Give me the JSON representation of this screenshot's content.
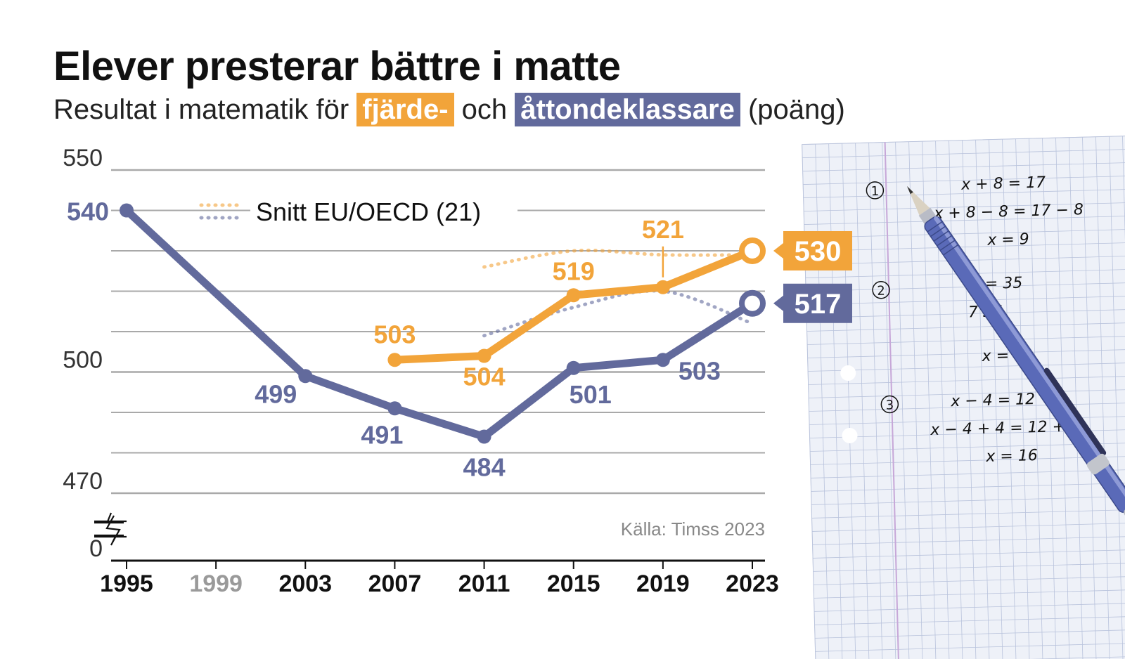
{
  "title": "Elever presterar bättre i matte",
  "subtitle": {
    "prefix": "Resultat i matematik för",
    "grade4": "fjärde-",
    "middle": "och",
    "grade8": "åttondeklassare",
    "suffix": "(poäng)"
  },
  "legend_label": "Snitt EU/OECD (21)",
  "source": "Källa: Timss 2023",
  "colors": {
    "grade4": "#f2a43a",
    "grade8": "#626a9c",
    "grid": "#a9a9a9",
    "grey_year": "#9a9a9a"
  },
  "paper": {
    "equations": [
      "x + 8 = 17",
      "x + 8 − 8 = 17 − 8",
      "x = 9",
      "= 35",
      "7 35",
      "x =",
      "x − 4 = 12",
      "x − 4 + 4 = 12 + 4",
      "x = 16"
    ],
    "numbers": [
      "1",
      "2",
      "3"
    ]
  },
  "chart_data": {
    "type": "line",
    "x": [
      1995,
      1999,
      2003,
      2007,
      2011,
      2015,
      2019,
      2023
    ],
    "x_tick_labels": [
      "1995",
      "1999",
      "2003",
      "2007",
      "2011",
      "2015",
      "2019",
      "2023"
    ],
    "y_tick_labels": [
      "550",
      "500",
      "470",
      "0"
    ],
    "ylim": [
      470,
      550
    ],
    "y_axis_break": "0",
    "grid": true,
    "series": [
      {
        "name": "åttondeklassare",
        "color": "#626a9c",
        "points": [
          [
            1995,
            540
          ],
          [
            2003,
            499
          ],
          [
            2007,
            491
          ],
          [
            2011,
            484
          ],
          [
            2015,
            501
          ],
          [
            2019,
            503
          ],
          [
            2023,
            517
          ]
        ],
        "labels": [
          "540",
          "499",
          "491",
          "484",
          "501",
          "503",
          "517"
        ]
      },
      {
        "name": "fjärde-",
        "color": "#f2a43a",
        "points": [
          [
            2007,
            503
          ],
          [
            2011,
            504
          ],
          [
            2015,
            519
          ],
          [
            2019,
            521
          ],
          [
            2023,
            530
          ]
        ],
        "labels": [
          "503",
          "504",
          "519",
          "521",
          "530"
        ]
      },
      {
        "name": "Snitt EU/OECD (21) fjärde-",
        "color": "#f2a43a",
        "dotted": true,
        "points": [
          [
            2011,
            526
          ],
          [
            2015,
            530
          ],
          [
            2019,
            529
          ],
          [
            2023,
            529
          ]
        ]
      },
      {
        "name": "Snitt EU/OECD (21) åttondeklassare",
        "color": "#626a9c",
        "dotted": true,
        "points": [
          [
            2011,
            509
          ],
          [
            2015,
            516
          ],
          [
            2019,
            520
          ],
          [
            2023,
            512
          ]
        ]
      }
    ]
  }
}
